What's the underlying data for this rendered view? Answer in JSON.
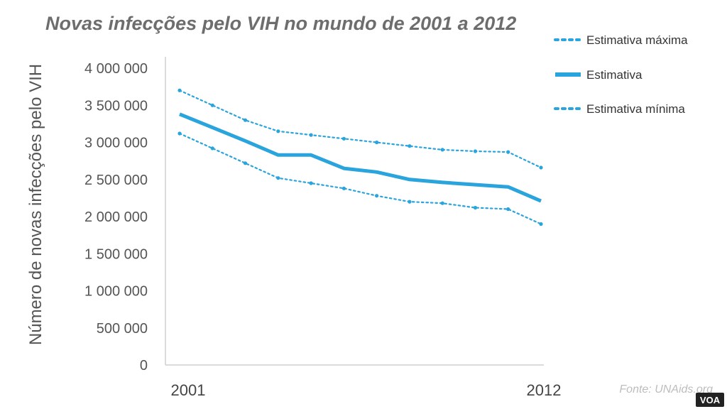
{
  "chart_data": {
    "type": "line",
    "title": "Novas infecções pelo VIH no mundo de 2001 a 2012",
    "ylabel": "Número de novas infecções pelo VIH",
    "xlabel": "",
    "x": [
      2001,
      2002,
      2003,
      2004,
      2005,
      2006,
      2007,
      2008,
      2009,
      2010,
      2011,
      2012
    ],
    "xtick_labels": [
      "2001",
      "2012"
    ],
    "ylim": [
      0,
      4000000
    ],
    "yticks": [
      0,
      500000,
      1000000,
      1500000,
      2000000,
      2500000,
      3000000,
      3500000,
      4000000
    ],
    "ytick_labels": [
      "0",
      "500 000",
      "1 000 000",
      "1 500 000",
      "2 000 000",
      "2 500 000",
      "3 000 000",
      "3 500 000",
      "4 000 000"
    ],
    "grid": false,
    "legend_position": "right",
    "series": [
      {
        "name": "Estimativa máxima",
        "style": "dotted",
        "values": [
          3700000,
          3500000,
          3300000,
          3150000,
          3100000,
          3050000,
          3000000,
          2950000,
          2900000,
          2880000,
          2870000,
          2660000
        ]
      },
      {
        "name": "Estimativa",
        "style": "solid",
        "values": [
          3380000,
          3200000,
          3020000,
          2830000,
          2830000,
          2650000,
          2600000,
          2500000,
          2460000,
          2430000,
          2400000,
          2210000
        ]
      },
      {
        "name": "Estimativa mínima",
        "style": "dotted",
        "values": [
          3120000,
          2920000,
          2720000,
          2520000,
          2450000,
          2380000,
          2280000,
          2200000,
          2180000,
          2120000,
          2100000,
          1900000
        ]
      }
    ]
  },
  "source": "Fonte: UNAids.org",
  "watermark": "VOA",
  "colors": {
    "line": "#2aa4dc",
    "axis": "#cfcfcf",
    "voa_box": "#222222"
  }
}
